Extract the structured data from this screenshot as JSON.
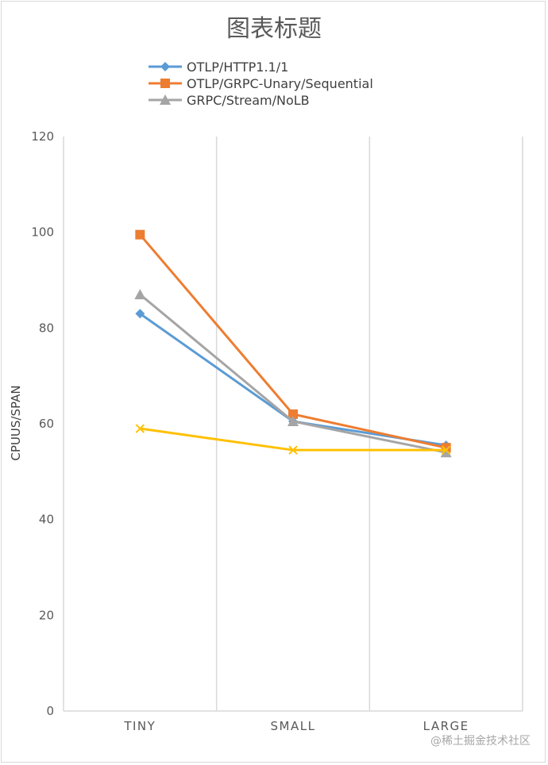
{
  "chart_data": {
    "type": "line",
    "title": "图表标题",
    "ylabel": "CPUUS/SPAN",
    "xlabel": "",
    "categories": [
      "TINY",
      "SMALL",
      "LARGE"
    ],
    "ylim": [
      0,
      120
    ],
    "yticks": [
      0,
      20,
      40,
      60,
      80,
      100,
      120
    ],
    "grid": "vertical lines at category boundaries",
    "legend_position": "top",
    "series": [
      {
        "name": "OTLP/HTTP1.1/1",
        "values": [
          83,
          60.5,
          55.5
        ],
        "color": "#5b9bd5",
        "marker": "diamond"
      },
      {
        "name": "OTLP/GRPC-Unary/Sequential",
        "values": [
          99.5,
          62,
          55
        ],
        "color": "#ed7d31",
        "marker": "square"
      },
      {
        "name": "GRPC/Stream/NoLB",
        "values": [
          87,
          60.5,
          54
        ],
        "color": "#a5a5a5",
        "marker": "triangle"
      },
      {
        "name": "",
        "values": [
          59,
          54.5,
          54.5
        ],
        "color": "#ffc000",
        "marker": "x"
      }
    ]
  },
  "watermark": "@稀土掘金技术社区"
}
